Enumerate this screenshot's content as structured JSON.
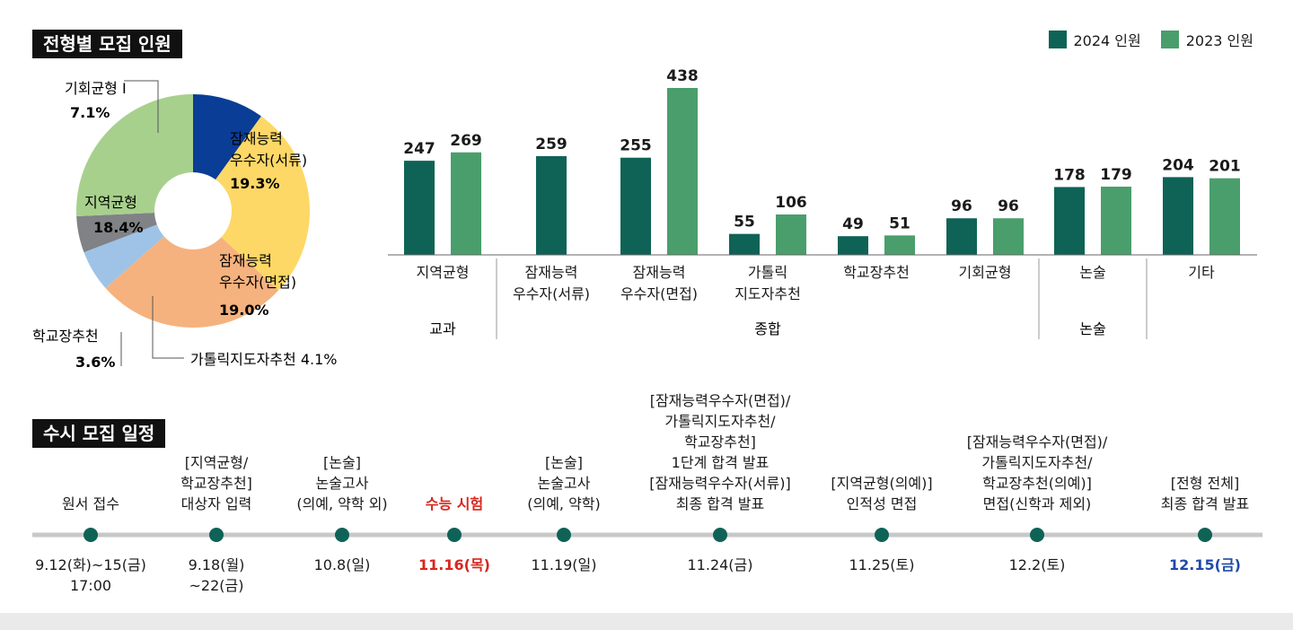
{
  "sections": {
    "recruit_title": "전형별 모집 인원",
    "schedule_title": "수시 모집 일정"
  },
  "legend": [
    {
      "label": "2024 인원",
      "color": "#0e6356"
    },
    {
      "label": "2023 인원",
      "color": "#4a9e6c"
    }
  ],
  "chart_data": [
    {
      "type": "pie",
      "title": "전형별 모집 인원",
      "slices": [
        {
          "name": "기회균형 I",
          "value": 7.1,
          "label": "7.1%",
          "color": "#0a3d96"
        },
        {
          "name": "잠재능력 우수자(서류)",
          "value": 19.3,
          "label": "19.3%",
          "color": "#fdd866"
        },
        {
          "name": "잠재능력 우수자(면접)",
          "value": 19.0,
          "label": "19.0%",
          "color": "#f5b27e"
        },
        {
          "name": "가톨릭지도자추천",
          "value": 4.1,
          "label": "4.1%",
          "color": "#9ec3e6"
        },
        {
          "name": "학교장추천",
          "value": 3.6,
          "label": "3.6%",
          "color": "#808285"
        },
        {
          "name": "지역균형",
          "value": 18.4,
          "label": "18.4%",
          "color": "#a8d08d"
        }
      ],
      "texts": {
        "gihoe_name": "기회균형 I",
        "gihoe_pct": "7.1%",
        "seoryu_l1": "잠재능력",
        "seoryu_l2": "우수자(서류)",
        "seoryu_pct": "19.3%",
        "jiyeok_l1": "지역균형",
        "jiyeok_pct": "18.4%",
        "myeonjeop_l1": "잠재능력",
        "myeonjeop_l2": "우수자(면접)",
        "myeonjeop_pct": "19.0%",
        "hakgyo_name": "학교장추천",
        "hakgyo_pct": "3.6%",
        "catholic_full": "가톨릭지도자추천 4.1%"
      }
    },
    {
      "type": "bar",
      "series": [
        {
          "name": "2024 인원",
          "values": [
            247,
            259,
            255,
            55,
            49,
            96,
            178,
            204
          ]
        },
        {
          "name": "2023 인원",
          "values": [
            269,
            null,
            438,
            106,
            51,
            96,
            179,
            201
          ]
        }
      ],
      "categories": [
        [
          "지역균형"
        ],
        [
          "잠재능력",
          "우수자(서류)"
        ],
        [
          "잠재능력",
          "우수자(면접)"
        ],
        [
          "가톨릭",
          "지도자추천"
        ],
        [
          "학교장추천"
        ],
        [
          "기회균형"
        ],
        [
          "논술"
        ],
        [
          "기타"
        ]
      ],
      "groups": [
        {
          "label": "교과"
        },
        {
          "label": "종합"
        },
        {
          "label": "논술"
        }
      ],
      "ylim": [
        0,
        450
      ]
    }
  ],
  "schedule": {
    "events": [
      {
        "label": "원서 접수",
        "date": "9.12(화)~15(금)\n17:00",
        "style": "normal"
      },
      {
        "label": "[지역균형/\n학교장추천]\n대상자 입력",
        "date": "9.18(월)\n~22(금)",
        "style": "normal"
      },
      {
        "label": "[논술]\n논술고사\n(의예, 약학 외)",
        "date": "10.8(일)",
        "style": "normal"
      },
      {
        "label": "수능 시험",
        "date": "11.16(목)",
        "style": "red"
      },
      {
        "label": "[논술]\n논술고사\n(의예, 약학)",
        "date": "11.19(일)",
        "style": "normal"
      },
      {
        "label": "[잠재능력우수자(면접)/\n가톨릭지도자추천/\n학교장추천]\n1단계 합격 발표\n[잠재능력우수자(서류)]\n최종 합격 발표",
        "date": "11.24(금)",
        "style": "normal"
      },
      {
        "label": "[지역균형(의예)]\n인적성 면접",
        "date": "11.25(토)",
        "style": "normal"
      },
      {
        "label": "[잠재능력우수자(면접)/\n가톨릭지도자추천/\n학교장추천(의예)]\n면접(신학과 제외)",
        "date": "12.2(토)",
        "style": "normal"
      },
      {
        "label": "[전형 전체]\n최종 합격 발표",
        "date": "12.15(금)",
        "style": "blue"
      }
    ]
  }
}
